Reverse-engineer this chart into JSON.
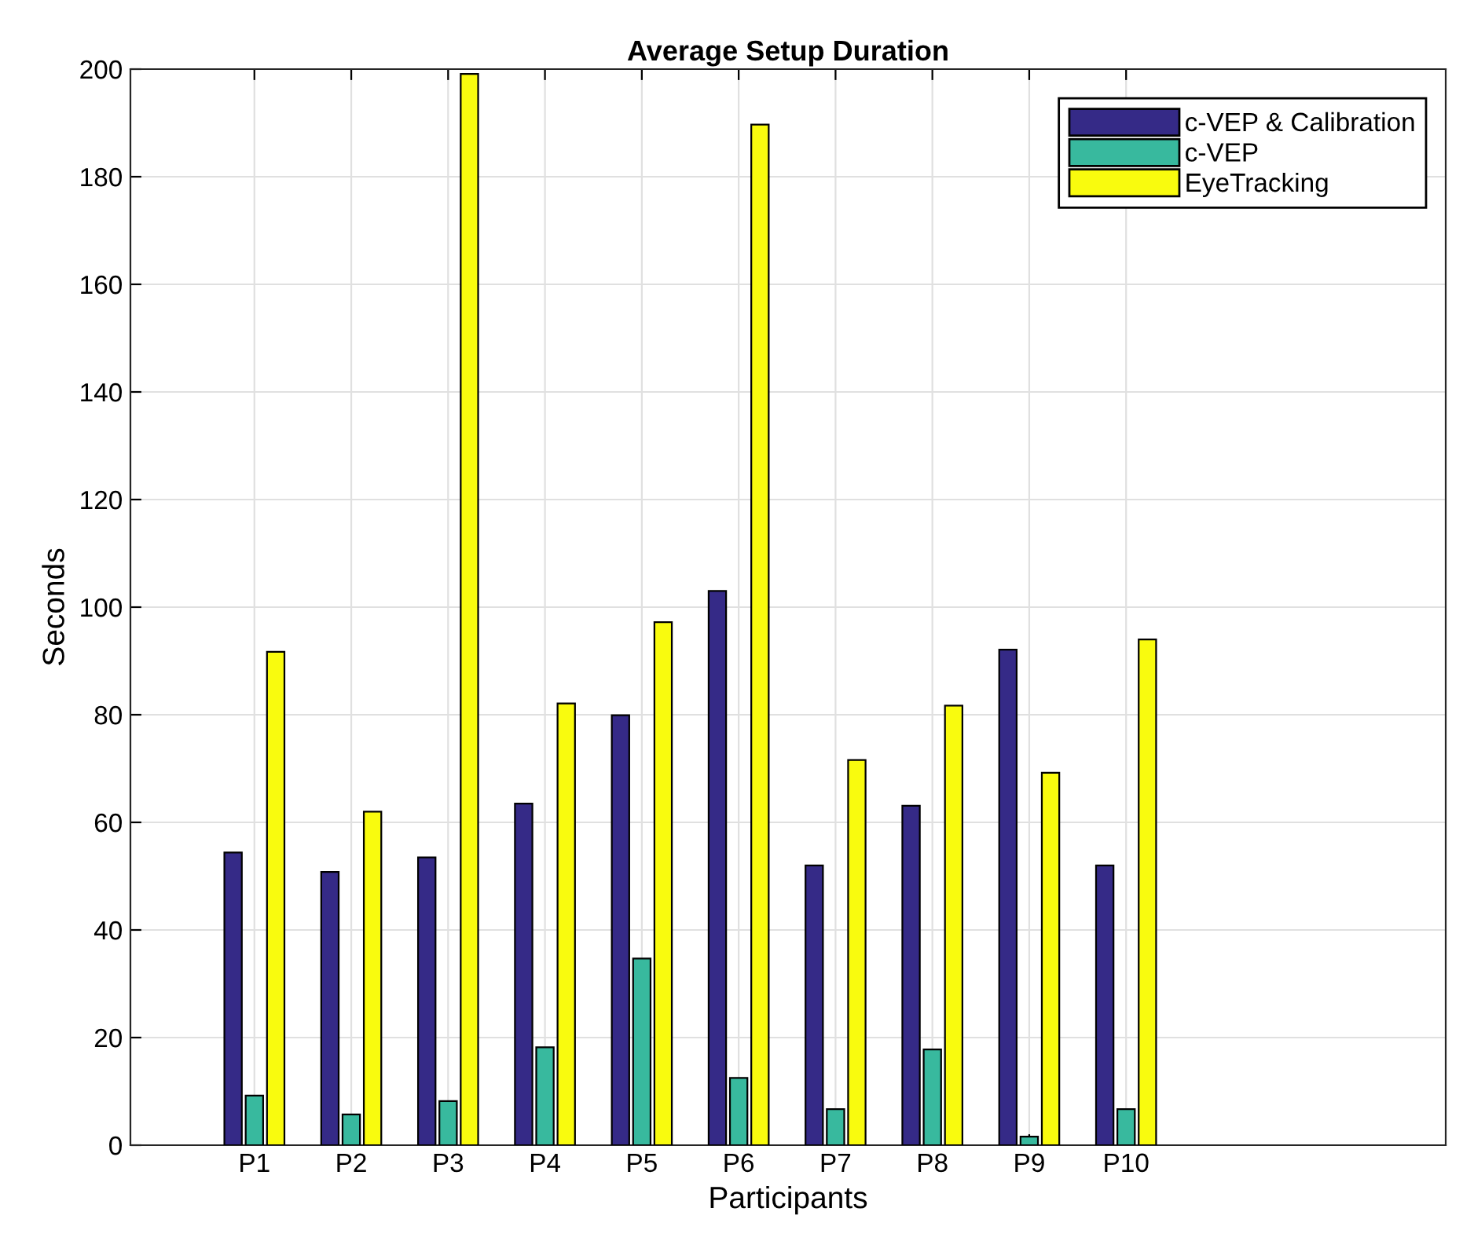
{
  "chart_data": {
    "type": "bar",
    "title": "Average Setup Duration",
    "xlabel": "Participants",
    "ylabel": "Seconds",
    "categories": [
      "P1",
      "P2",
      "P3",
      "P4",
      "P5",
      "P6",
      "P7",
      "P8",
      "P9",
      "P10"
    ],
    "series": [
      {
        "name": "c-VEP & Calibration",
        "color": "#352a87",
        "values": [
          54.4,
          50.8,
          53.5,
          63.5,
          79.9,
          103.0,
          52.0,
          63.1,
          92.1,
          52.0
        ]
      },
      {
        "name": "c-VEP",
        "color": "#38b99e",
        "values": [
          9.2,
          5.7,
          8.2,
          18.2,
          34.7,
          12.5,
          6.7,
          17.8,
          1.6,
          6.7
        ]
      },
      {
        "name": "EyeTracking",
        "color": "#f9fb0e",
        "values": [
          91.7,
          62.0,
          199.1,
          82.1,
          97.2,
          189.7,
          71.6,
          81.7,
          69.2,
          94.0
        ]
      }
    ],
    "ylim": [
      0,
      200
    ],
    "yticks": [
      0,
      20,
      40,
      60,
      80,
      100,
      120,
      140,
      160,
      180,
      200
    ],
    "grid": true,
    "legend": "top right"
  }
}
